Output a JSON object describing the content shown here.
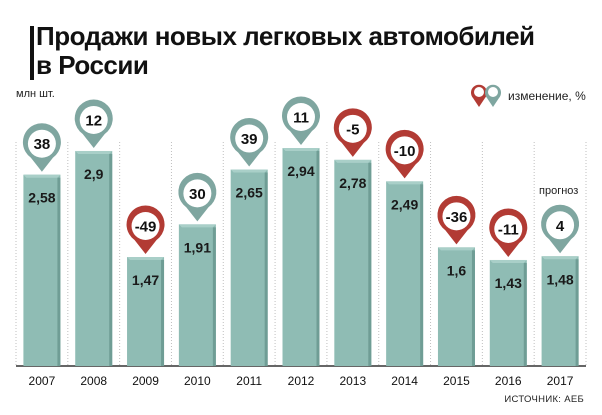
{
  "title": "Продажи новых легковых автомобилей\nв России",
  "unit_label": "млн шт.",
  "legend_label": "изменение, %",
  "forecast_label": "прогноз",
  "source_label": "ИСТОЧНИК:",
  "source_value": "АЕБ",
  "colors": {
    "bar": "#8fbcb4",
    "bar_dark": "#6f9d95",
    "grid": "#bfbfbf",
    "positive_marker": "#7fa6a0",
    "negative_marker": "#b23b34",
    "marker_face": "#ffffff",
    "bg": "#ffffff"
  },
  "chart_data": {
    "type": "bar",
    "title": "Продажи новых легковых автомобилей в России",
    "ylabel": "млн шт.",
    "categories": [
      "2007",
      "2008",
      "2009",
      "2010",
      "2011",
      "2012",
      "2013",
      "2014",
      "2015",
      "2016",
      "2017"
    ],
    "values": [
      2.58,
      2.9,
      1.47,
      1.91,
      2.65,
      2.94,
      2.78,
      2.49,
      1.6,
      1.43,
      1.48
    ],
    "value_labels": [
      "2,58",
      "2,9",
      "1,47",
      "1,91",
      "2,65",
      "2,94",
      "2,78",
      "2,49",
      "1,6",
      "1,43",
      "1,48"
    ],
    "change_percent": [
      38,
      12,
      -49,
      30,
      39,
      11,
      -5,
      -10,
      -36,
      -11,
      4
    ],
    "change_labels": [
      "38",
      "12",
      "-49",
      "30",
      "39",
      "11",
      "-5",
      "-10",
      "-36",
      "-11",
      "4"
    ],
    "forecast_category": "2017",
    "ylim": [
      0,
      3.3
    ],
    "grid": false
  }
}
